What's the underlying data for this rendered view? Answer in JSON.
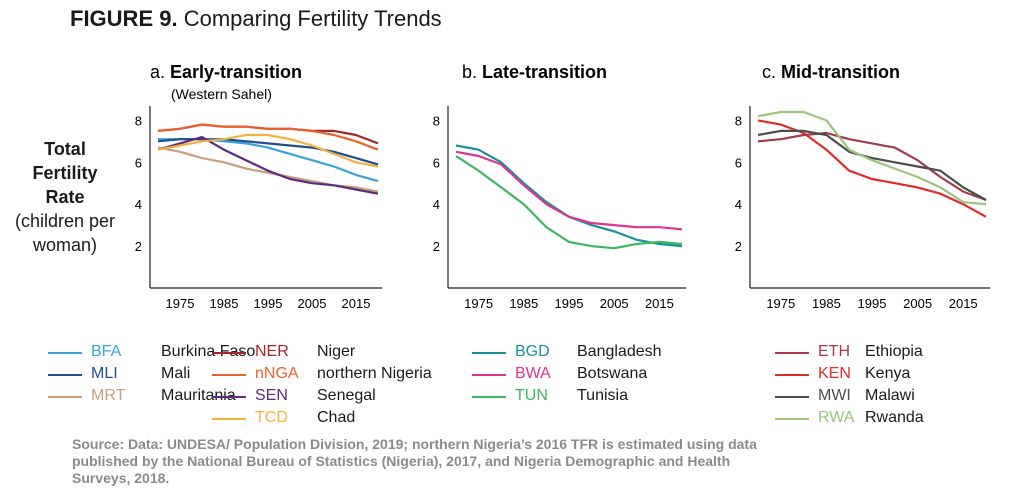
{
  "figure": {
    "label": "FIGURE 9.",
    "title": "Comparing Fertility Trends"
  },
  "ylabel": {
    "line1": "Total",
    "line2": "Fertility",
    "line3": "Rate",
    "line4": "(children per",
    "line5": "woman)"
  },
  "source": "Source: Data: UNDESA/ Population Division, 2019; northern Nigeria’s 2016 TFR is estimated using data published by the National Bureau of Statistics (Nigeria), 2017, and Nigeria Demographic and Health Surveys, 2018.",
  "chart_data": [
    {
      "type": "line",
      "letter": "a.",
      "title": "Early-transition",
      "subtitle": "(Western Sahel)",
      "xticks": [
        "1975",
        "1985",
        "1995",
        "2005",
        "2015"
      ],
      "yticks": [
        "8",
        "6",
        "4",
        "2"
      ],
      "xlim": [
        1970,
        2020
      ],
      "ylim": [
        0,
        8.4
      ],
      "x": [
        1970,
        1975,
        1980,
        1985,
        1990,
        1995,
        2000,
        2005,
        2010,
        2015,
        2020
      ],
      "series": [
        {
          "code": "BFA",
          "name": "Burkina Faso",
          "color": "#3aa3dc",
          "values": [
            7.1,
            7.1,
            7.1,
            7.0,
            6.9,
            6.7,
            6.4,
            6.1,
            5.8,
            5.4,
            5.1
          ]
        },
        {
          "code": "MLI",
          "name": "Mali",
          "color": "#1f4e8c",
          "values": [
            7.0,
            7.1,
            7.1,
            7.1,
            7.0,
            6.9,
            6.8,
            6.7,
            6.5,
            6.2,
            5.9
          ]
        },
        {
          "code": "MRT",
          "name": "Mauritania",
          "color": "#c9a07e",
          "values": [
            6.7,
            6.5,
            6.2,
            6.0,
            5.7,
            5.5,
            5.3,
            5.1,
            4.9,
            4.8,
            4.6
          ]
        },
        {
          "code": "NER",
          "name": "Niger",
          "color": "#a4262c",
          "values": [
            7.5,
            7.6,
            7.8,
            7.7,
            7.7,
            7.6,
            7.6,
            7.5,
            7.5,
            7.3,
            6.9
          ]
        },
        {
          "code": "nNGA",
          "name": "northern Nigeria",
          "color": "#e8622c",
          "values": [
            7.5,
            7.6,
            7.8,
            7.7,
            7.7,
            7.6,
            7.6,
            7.5,
            7.3,
            7.0,
            6.6
          ]
        },
        {
          "code": "SEN",
          "name": "Senegal",
          "color": "#5c2a7e",
          "values": [
            6.6,
            6.9,
            7.2,
            6.6,
            6.1,
            5.6,
            5.2,
            5.0,
            4.9,
            4.7,
            4.5
          ]
        },
        {
          "code": "TCD",
          "name": "Chad",
          "color": "#f5b041",
          "values": [
            6.6,
            6.8,
            7.0,
            7.1,
            7.3,
            7.3,
            7.1,
            6.8,
            6.4,
            6.0,
            5.8
          ]
        }
      ]
    },
    {
      "type": "line",
      "letter": "b.",
      "title": "Late-transition",
      "xticks": [
        "1975",
        "1985",
        "1995",
        "2005",
        "2015"
      ],
      "yticks": [
        "8",
        "6",
        "4",
        "2"
      ],
      "xlim": [
        1970,
        2020
      ],
      "ylim": [
        0,
        8.4
      ],
      "x": [
        1970,
        1975,
        1980,
        1985,
        1990,
        1995,
        2000,
        2005,
        2010,
        2015,
        2020
      ],
      "series": [
        {
          "code": "BGD",
          "name": "Bangladesh",
          "color": "#1a8f9a",
          "values": [
            6.8,
            6.6,
            6.0,
            5.0,
            4.1,
            3.4,
            3.0,
            2.7,
            2.3,
            2.1,
            2.0
          ]
        },
        {
          "code": "BWA",
          "name": "Botswana",
          "color": "#e0338f",
          "values": [
            6.5,
            6.3,
            5.9,
            4.9,
            4.0,
            3.4,
            3.1,
            3.0,
            2.9,
            2.9,
            2.8
          ]
        },
        {
          "code": "TUN",
          "name": "Tunisia",
          "color": "#3cb864",
          "values": [
            6.3,
            5.6,
            4.8,
            4.0,
            2.9,
            2.2,
            2.0,
            1.9,
            2.1,
            2.2,
            2.1
          ]
        }
      ]
    },
    {
      "type": "line",
      "letter": "c.",
      "title": "Mid-transition",
      "xticks": [
        "1975",
        "1985",
        "1995",
        "2005",
        "2015"
      ],
      "yticks": [
        "8",
        "6",
        "4",
        "2"
      ],
      "xlim": [
        1970,
        2020
      ],
      "ylim": [
        0,
        8.4
      ],
      "x": [
        1970,
        1975,
        1980,
        1985,
        1990,
        1995,
        2000,
        2005,
        2010,
        2015,
        2020
      ],
      "series": [
        {
          "code": "ETH",
          "name": "Ethiopia",
          "color": "#a23b4a",
          "values": [
            7.0,
            7.1,
            7.3,
            7.4,
            7.1,
            6.9,
            6.7,
            6.1,
            5.3,
            4.6,
            4.2
          ]
        },
        {
          "code": "KEN",
          "name": "Kenya",
          "color": "#e02b2b",
          "values": [
            8.0,
            7.8,
            7.4,
            6.6,
            5.6,
            5.2,
            5.0,
            4.8,
            4.5,
            4.0,
            3.4
          ]
        },
        {
          "code": "MWI",
          "name": "Malawi",
          "color": "#4d4d4d",
          "values": [
            7.3,
            7.5,
            7.5,
            7.3,
            6.5,
            6.2,
            6.0,
            5.8,
            5.6,
            4.8,
            4.2
          ]
        },
        {
          "code": "RWA",
          "name": "Rwanda",
          "color": "#9cc47e",
          "values": [
            8.2,
            8.4,
            8.4,
            8.0,
            6.6,
            6.1,
            5.7,
            5.3,
            4.8,
            4.1,
            4.0
          ]
        }
      ]
    }
  ]
}
